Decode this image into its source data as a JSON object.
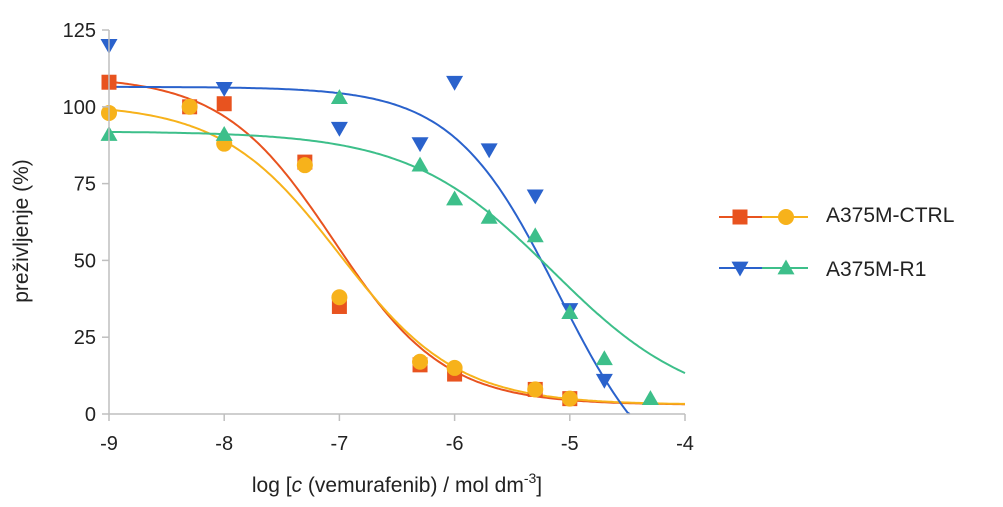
{
  "chart_data": {
    "type": "scatter",
    "ylabel": "preživljenje (%)",
    "xlabel": {
      "prefix": "log [",
      "italic": "c",
      "middle": " (vemurafenib) / mol dm",
      "superscript": "-3",
      "suffix": "]"
    },
    "xlim": [
      -9,
      -4
    ],
    "ylim": [
      0,
      125
    ],
    "x_ticks": [
      -9,
      -8,
      -7,
      -6,
      -5,
      -4
    ],
    "x_tick_labels": [
      "-9",
      "-8",
      "-7",
      "-6",
      "-5",
      "-4"
    ],
    "y_ticks": [
      0,
      25,
      50,
      75,
      100,
      125
    ],
    "y_tick_labels": [
      "0",
      "25",
      "50",
      "75",
      "100",
      "125"
    ],
    "grid": false,
    "legend_position": "right",
    "legend": [
      {
        "label": "A375M-CTRL",
        "markers": [
          "square",
          "circle"
        ],
        "colors": [
          "#e8531f",
          "#f7b21b"
        ]
      },
      {
        "label": "A375M-R1",
        "markers": [
          "triangle-down",
          "triangle-up"
        ],
        "colors": [
          "#2a62cc",
          "#3dbf8a"
        ]
      }
    ],
    "series": [
      {
        "marker": "square",
        "color": "#e8531f",
        "points": [
          [
            -9,
            108
          ],
          [
            -8.3,
            100
          ],
          [
            -8,
            101
          ],
          [
            -7.3,
            82
          ],
          [
            -7,
            35
          ],
          [
            -6.3,
            16
          ],
          [
            -6,
            13
          ],
          [
            -5.3,
            8
          ],
          [
            -5,
            5
          ]
        ],
        "fit": {
          "top": 110,
          "bottom": 3,
          "logEC50": -7.05,
          "hill": 0.9
        }
      },
      {
        "marker": "circle",
        "color": "#f7b21b",
        "points": [
          [
            -9,
            98
          ],
          [
            -8.3,
            100
          ],
          [
            -8,
            88
          ],
          [
            -7.3,
            81
          ],
          [
            -7,
            38
          ],
          [
            -6.3,
            17
          ],
          [
            -6,
            15
          ],
          [
            -5.3,
            8
          ],
          [
            -5,
            5
          ]
        ],
        "fit": {
          "top": 101,
          "bottom": 3,
          "logEC50": -7.0,
          "hill": 0.85
        }
      },
      {
        "marker": "triangle-down",
        "color": "#2a62cc",
        "points": [
          [
            -9,
            120
          ],
          [
            -8,
            106
          ],
          [
            -7,
            93
          ],
          [
            -6.3,
            88
          ],
          [
            -6,
            108
          ],
          [
            -5.7,
            86
          ],
          [
            -5.3,
            71
          ],
          [
            -5,
            34
          ],
          [
            -4.7,
            11
          ]
        ],
        "fit": {
          "top": 106.5,
          "bottom": -28,
          "logEC50": -5.1,
          "hill": 0.95
        }
      },
      {
        "marker": "triangle-up",
        "color": "#3dbf8a",
        "points": [
          [
            -9,
            91
          ],
          [
            -8,
            91
          ],
          [
            -7,
            103
          ],
          [
            -6.3,
            81
          ],
          [
            -6,
            70
          ],
          [
            -5.7,
            64
          ],
          [
            -5.3,
            58
          ],
          [
            -5,
            33
          ],
          [
            -4.7,
            18
          ],
          [
            -4.3,
            5
          ]
        ],
        "fit": {
          "top": 92,
          "bottom": 1,
          "logEC50": -5.15,
          "hill": 0.7
        }
      }
    ]
  }
}
